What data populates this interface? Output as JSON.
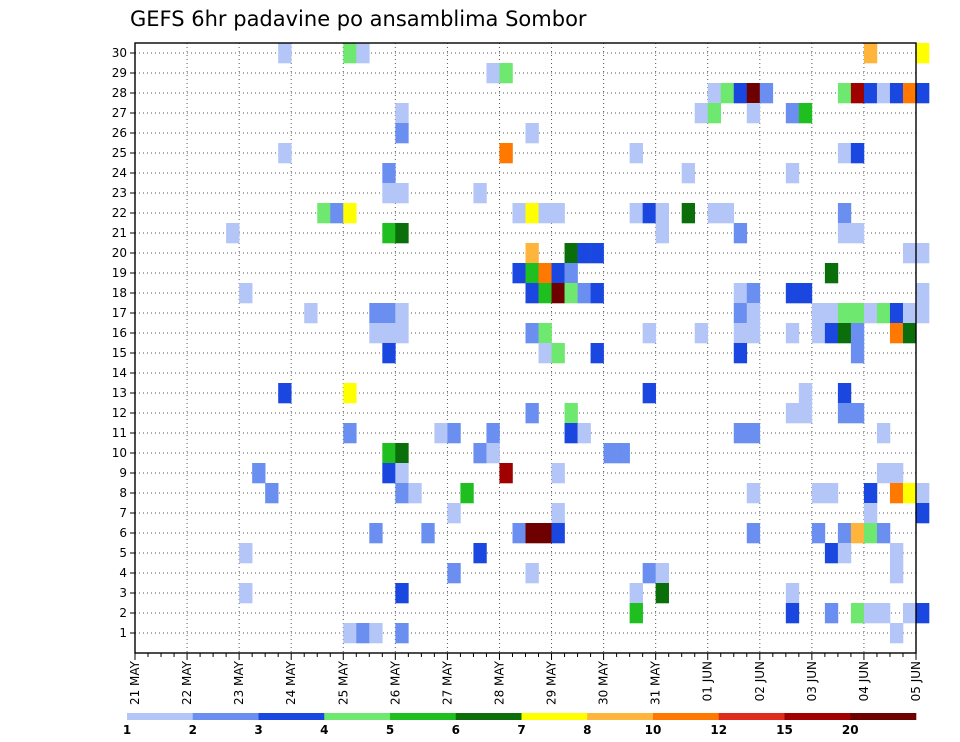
{
  "chart_data": {
    "type": "heatmap",
    "title": "GEFS 6hr padavine po ansamblima Sombor",
    "x_labels": [
      "21 MAY",
      "22 MAY",
      "23 MAY",
      "24 MAY",
      "25 MAY",
      "26 MAY",
      "27 MAY",
      "28 MAY",
      "29 MAY",
      "30 MAY",
      "31 MAY",
      "01 JUN",
      "02 JUN",
      "03 JUN",
      "04 JUN",
      "05 JUN"
    ],
    "y_labels": [
      "1",
      "2",
      "3",
      "4",
      "5",
      "6",
      "7",
      "8",
      "9",
      "10",
      "11",
      "12",
      "13",
      "14",
      "15",
      "16",
      "17",
      "18",
      "19",
      "20",
      "21",
      "22",
      "23",
      "24",
      "25",
      "26",
      "27",
      "28",
      "29",
      "30"
    ],
    "steps_per_day": 4,
    "colorbar": {
      "labels": [
        "1",
        "2",
        "3",
        "4",
        "5",
        "6",
        "7",
        "8",
        "10",
        "12",
        "15",
        "20"
      ],
      "colors": [
        "#b3c6f7",
        "#6b8ff0",
        "#1a47e0",
        "#6fe86f",
        "#1fbf1f",
        "#0a6e0a",
        "#ffff00",
        "#ffb43c",
        "#ff7800",
        "#e02a1a",
        "#a00000",
        "#6e0000"
      ]
    },
    "cells": [
      [
        30,
        11,
        1
      ],
      [
        30,
        16,
        4
      ],
      [
        30,
        17,
        1
      ],
      [
        30,
        56,
        8
      ],
      [
        30,
        60,
        7
      ],
      [
        29,
        27,
        1
      ],
      [
        29,
        28,
        4
      ],
      [
        28,
        44,
        1
      ],
      [
        28,
        45,
        4
      ],
      [
        28,
        46,
        3
      ],
      [
        28,
        47,
        12
      ],
      [
        28,
        48,
        2
      ],
      [
        28,
        54,
        4
      ],
      [
        28,
        55,
        11
      ],
      [
        28,
        56,
        3
      ],
      [
        28,
        57,
        1
      ],
      [
        28,
        58,
        3
      ],
      [
        28,
        59,
        9
      ],
      [
        28,
        60,
        3
      ],
      [
        27,
        20,
        1
      ],
      [
        27,
        43,
        1
      ],
      [
        27,
        44,
        4
      ],
      [
        27,
        47,
        1
      ],
      [
        27,
        50,
        2
      ],
      [
        27,
        51,
        5
      ],
      [
        26,
        20,
        2
      ],
      [
        26,
        30,
        1
      ],
      [
        25,
        11,
        1
      ],
      [
        25,
        28,
        9
      ],
      [
        25,
        38,
        1
      ],
      [
        25,
        54,
        1
      ],
      [
        25,
        55,
        3
      ],
      [
        24,
        19,
        2
      ],
      [
        24,
        42,
        1
      ],
      [
        24,
        50,
        1
      ],
      [
        23,
        19,
        1
      ],
      [
        23,
        20,
        1
      ],
      [
        23,
        26,
        1
      ],
      [
        22,
        14,
        4
      ],
      [
        22,
        15,
        2
      ],
      [
        22,
        16,
        7
      ],
      [
        22,
        29,
        1
      ],
      [
        22,
        30,
        7
      ],
      [
        22,
        31,
        1
      ],
      [
        22,
        32,
        1
      ],
      [
        22,
        38,
        1
      ],
      [
        22,
        39,
        3
      ],
      [
        22,
        40,
        1
      ],
      [
        22,
        42,
        6
      ],
      [
        22,
        44,
        1
      ],
      [
        22,
        45,
        1
      ],
      [
        22,
        54,
        2
      ],
      [
        21,
        7,
        1
      ],
      [
        21,
        19,
        5
      ],
      [
        21,
        20,
        6
      ],
      [
        21,
        40,
        1
      ],
      [
        21,
        46,
        2
      ],
      [
        21,
        54,
        1
      ],
      [
        21,
        55,
        1
      ],
      [
        20,
        30,
        8
      ],
      [
        20,
        33,
        6
      ],
      [
        20,
        34,
        3
      ],
      [
        20,
        35,
        3
      ],
      [
        20,
        59,
        1
      ],
      [
        20,
        60,
        1
      ],
      [
        19,
        29,
        3
      ],
      [
        19,
        30,
        5
      ],
      [
        19,
        31,
        9
      ],
      [
        19,
        32,
        3
      ],
      [
        19,
        33,
        2
      ],
      [
        19,
        53,
        6
      ],
      [
        18,
        8,
        1
      ],
      [
        18,
        30,
        3
      ],
      [
        18,
        31,
        5
      ],
      [
        18,
        32,
        12
      ],
      [
        18,
        33,
        4
      ],
      [
        18,
        34,
        2
      ],
      [
        18,
        35,
        3
      ],
      [
        18,
        46,
        1
      ],
      [
        18,
        47,
        2
      ],
      [
        18,
        50,
        3
      ],
      [
        18,
        51,
        3
      ],
      [
        18,
        60,
        1
      ],
      [
        17,
        13,
        1
      ],
      [
        17,
        18,
        2
      ],
      [
        17,
        19,
        2
      ],
      [
        17,
        20,
        1
      ],
      [
        17,
        46,
        2
      ],
      [
        17,
        47,
        1
      ],
      [
        17,
        52,
        1
      ],
      [
        17,
        53,
        1
      ],
      [
        17,
        54,
        4
      ],
      [
        17,
        55,
        4
      ],
      [
        17,
        56,
        1
      ],
      [
        17,
        57,
        4
      ],
      [
        17,
        58,
        3
      ],
      [
        17,
        59,
        1
      ],
      [
        17,
        60,
        1
      ],
      [
        16,
        18,
        1
      ],
      [
        16,
        19,
        1
      ],
      [
        16,
        20,
        1
      ],
      [
        16,
        30,
        2
      ],
      [
        16,
        31,
        4
      ],
      [
        16,
        39,
        1
      ],
      [
        16,
        43,
        1
      ],
      [
        16,
        46,
        1
      ],
      [
        16,
        47,
        1
      ],
      [
        16,
        50,
        1
      ],
      [
        16,
        52,
        1
      ],
      [
        16,
        53,
        3
      ],
      [
        16,
        54,
        6
      ],
      [
        16,
        55,
        2
      ],
      [
        16,
        58,
        9
      ],
      [
        16,
        59,
        6
      ],
      [
        15,
        19,
        3
      ],
      [
        15,
        31,
        1
      ],
      [
        15,
        32,
        4
      ],
      [
        15,
        35,
        3
      ],
      [
        15,
        46,
        3
      ],
      [
        15,
        55,
        2
      ],
      [
        13,
        11,
        3
      ],
      [
        13,
        16,
        7
      ],
      [
        13,
        39,
        3
      ],
      [
        13,
        51,
        1
      ],
      [
        13,
        54,
        3
      ],
      [
        12,
        30,
        2
      ],
      [
        12,
        33,
        4
      ],
      [
        12,
        50,
        1
      ],
      [
        12,
        51,
        1
      ],
      [
        12,
        54,
        2
      ],
      [
        12,
        55,
        2
      ],
      [
        11,
        16,
        2
      ],
      [
        11,
        23,
        1
      ],
      [
        11,
        24,
        2
      ],
      [
        11,
        27,
        2
      ],
      [
        11,
        33,
        3
      ],
      [
        11,
        34,
        1
      ],
      [
        11,
        46,
        2
      ],
      [
        11,
        47,
        2
      ],
      [
        11,
        57,
        1
      ],
      [
        10,
        19,
        5
      ],
      [
        10,
        20,
        6
      ],
      [
        10,
        26,
        2
      ],
      [
        10,
        27,
        1
      ],
      [
        10,
        36,
        2
      ],
      [
        10,
        37,
        2
      ],
      [
        9,
        9,
        2
      ],
      [
        9,
        19,
        3
      ],
      [
        9,
        20,
        1
      ],
      [
        9,
        28,
        11
      ],
      [
        9,
        32,
        1
      ],
      [
        9,
        57,
        1
      ],
      [
        9,
        58,
        1
      ],
      [
        8,
        10,
        2
      ],
      [
        8,
        20,
        2
      ],
      [
        8,
        21,
        1
      ],
      [
        8,
        25,
        5
      ],
      [
        8,
        47,
        1
      ],
      [
        8,
        52,
        1
      ],
      [
        8,
        53,
        1
      ],
      [
        8,
        56,
        3
      ],
      [
        8,
        58,
        9
      ],
      [
        8,
        59,
        7
      ],
      [
        8,
        60,
        1
      ],
      [
        7,
        24,
        1
      ],
      [
        7,
        32,
        1
      ],
      [
        7,
        56,
        1
      ],
      [
        7,
        60,
        3
      ],
      [
        6,
        18,
        2
      ],
      [
        6,
        22,
        2
      ],
      [
        6,
        29,
        2
      ],
      [
        6,
        30,
        12
      ],
      [
        6,
        31,
        12
      ],
      [
        6,
        32,
        3
      ],
      [
        6,
        47,
        2
      ],
      [
        6,
        52,
        2
      ],
      [
        6,
        54,
        2
      ],
      [
        6,
        55,
        8
      ],
      [
        6,
        56,
        4
      ],
      [
        6,
        57,
        2
      ],
      [
        5,
        8,
        1
      ],
      [
        5,
        26,
        3
      ],
      [
        5,
        53,
        3
      ],
      [
        5,
        54,
        1
      ],
      [
        5,
        58,
        1
      ],
      [
        4,
        24,
        2
      ],
      [
        4,
        30,
        1
      ],
      [
        4,
        39,
        2
      ],
      [
        4,
        40,
        1
      ],
      [
        4,
        58,
        1
      ],
      [
        3,
        8,
        1
      ],
      [
        3,
        20,
        3
      ],
      [
        3,
        38,
        1
      ],
      [
        3,
        40,
        6
      ],
      [
        3,
        50,
        1
      ],
      [
        2,
        38,
        5
      ],
      [
        2,
        50,
        3
      ],
      [
        2,
        53,
        2
      ],
      [
        2,
        55,
        4
      ],
      [
        2,
        56,
        1
      ],
      [
        2,
        57,
        1
      ],
      [
        2,
        59,
        1
      ],
      [
        2,
        60,
        3
      ],
      [
        1,
        16,
        1
      ],
      [
        1,
        17,
        2
      ],
      [
        1,
        18,
        1
      ],
      [
        1,
        20,
        2
      ],
      [
        1,
        58,
        1
      ]
    ]
  }
}
